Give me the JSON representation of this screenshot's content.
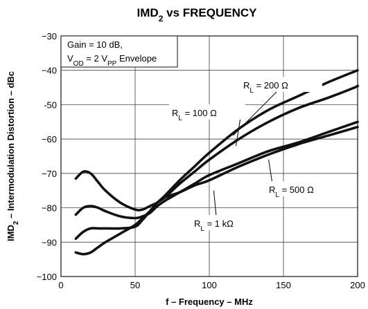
{
  "chart_data": {
    "type": "line",
    "title": {
      "main": "IMD",
      "sub": "2",
      "rest": " vs FREQUENCY"
    },
    "xlabel": "f – Frequency – MHz",
    "ylabel": {
      "main": "IMD",
      "sub": "2",
      "rest": " – Intermodulation Distortion – dBc"
    },
    "xlim": [
      0,
      200
    ],
    "ylim": [
      -100,
      -30
    ],
    "x_ticks": [
      "0",
      "50",
      "100",
      "150",
      "200"
    ],
    "y_ticks": [
      "−30",
      "−40",
      "-50",
      "−60",
      "−70",
      "−80",
      "−90",
      "−100"
    ],
    "grid": true,
    "condition": {
      "line1": "Gain = 10 dB,",
      "line2": {
        "p1": "V",
        "s1": "OD",
        "p2": " = 2 V",
        "s2": "PP",
        "p3": " Envelope"
      }
    },
    "series": [
      {
        "name": "RL = 200 Ω",
        "label": {
          "pre": "R",
          "sub": "L",
          "post": " = 200 Ω"
        },
        "x": [
          10,
          15,
          20,
          25,
          30,
          40,
          50,
          55,
          60,
          65,
          70,
          80,
          90,
          100,
          120,
          140,
          160,
          180,
          200
        ],
        "y": [
          -93,
          -93.5,
          -93,
          -91.5,
          -90,
          -87.5,
          -85,
          -83,
          -81,
          -78.5,
          -76.5,
          -72,
          -68,
          -64,
          -57,
          -51.5,
          -47.5,
          -43.5,
          -40
        ]
      },
      {
        "name": "RL = 100 Ω",
        "label": {
          "pre": "R",
          "sub": "L",
          "post": " = 100 Ω"
        },
        "x": [
          10,
          15,
          20,
          25,
          30,
          40,
          50,
          55,
          60,
          65,
          70,
          80,
          90,
          100,
          120,
          140,
          160,
          180,
          198,
          200
        ],
        "y": [
          -89,
          -87,
          -86,
          -86,
          -86,
          -86,
          -85.5,
          -83.5,
          -81,
          -78.5,
          -77,
          -73,
          -69.5,
          -66,
          -60,
          -55,
          -51,
          -48,
          -45,
          -44.5
        ]
      },
      {
        "name": "RL = 500 Ω",
        "label": {
          "pre": "R",
          "sub": "L",
          "post": " = 500 Ω"
        },
        "x": [
          10,
          15,
          20,
          25,
          30,
          40,
          50,
          55,
          60,
          65,
          70,
          80,
          90,
          100,
          120,
          140,
          160,
          180,
          200
        ],
        "y": [
          -82,
          -80,
          -79.5,
          -80,
          -81,
          -82.5,
          -83,
          -82.5,
          -81.5,
          -79.5,
          -78,
          -75.5,
          -73,
          -70.5,
          -67,
          -63.5,
          -61,
          -58,
          -55
        ]
      },
      {
        "name": "RL = 1 kΩ",
        "label": {
          "pre": "R",
          "sub": "L",
          "post": " = 1 kΩ"
        },
        "x": [
          10,
          15,
          20,
          25,
          30,
          40,
          50,
          55,
          60,
          65,
          70,
          80,
          90,
          100,
          120,
          140,
          160,
          180,
          200
        ],
        "y": [
          -71.5,
          -69.5,
          -70,
          -72.5,
          -75,
          -78.5,
          -80.5,
          -80.5,
          -79.5,
          -78.5,
          -77,
          -75.5,
          -73.5,
          -72,
          -68,
          -64.5,
          -61.5,
          -59,
          -56.5
        ]
      }
    ]
  }
}
